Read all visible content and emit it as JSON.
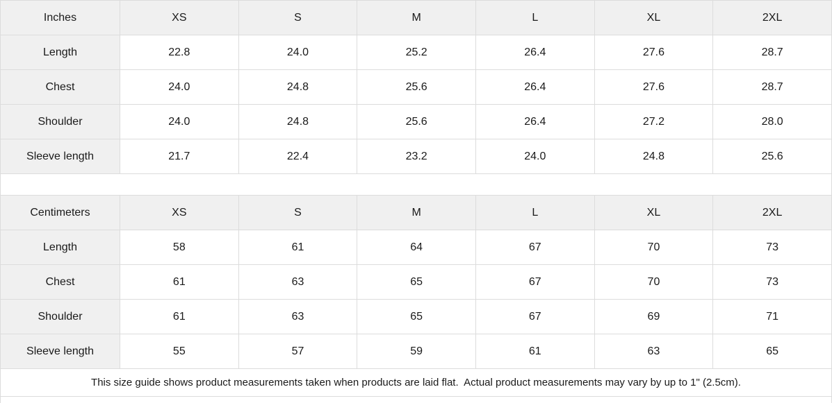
{
  "tables": [
    {
      "id": "inches",
      "unit_label": "Inches",
      "sizes": [
        "XS",
        "S",
        "M",
        "L",
        "XL",
        "2XL"
      ],
      "rows": [
        {
          "label": "Length",
          "values": [
            "22.8",
            "24.0",
            "25.2",
            "26.4",
            "27.6",
            "28.7"
          ]
        },
        {
          "label": "Chest",
          "values": [
            "24.0",
            "24.8",
            "25.6",
            "26.4",
            "27.6",
            "28.7"
          ]
        },
        {
          "label": "Shoulder",
          "values": [
            "24.0",
            "24.8",
            "25.6",
            "26.4",
            "27.2",
            "28.0"
          ]
        },
        {
          "label": "Sleeve length",
          "values": [
            "21.7",
            "22.4",
            "23.2",
            "24.0",
            "24.8",
            "25.6"
          ]
        }
      ]
    },
    {
      "id": "centimeters",
      "unit_label": "Centimeters",
      "sizes": [
        "XS",
        "S",
        "M",
        "L",
        "XL",
        "2XL"
      ],
      "rows": [
        {
          "label": "Length",
          "values": [
            "58",
            "61",
            "64",
            "67",
            "70",
            "73"
          ]
        },
        {
          "label": "Chest",
          "values": [
            "61",
            "63",
            "65",
            "67",
            "70",
            "73"
          ]
        },
        {
          "label": "Shoulder",
          "values": [
            "61",
            "63",
            "65",
            "67",
            "69",
            "71"
          ]
        },
        {
          "label": "Sleeve length",
          "values": [
            "55",
            "57",
            "59",
            "61",
            "63",
            "65"
          ]
        }
      ]
    }
  ],
  "footer": {
    "note": "This size guide shows product measurements taken when products are laid flat.  Actual product measurements may vary by up to 1\" (2.5cm)."
  },
  "colors": {
    "shaded_cell_bg": "#f0f0f0",
    "border": "#dcdcdc",
    "text": "#1a1a1a",
    "background": "#ffffff"
  }
}
